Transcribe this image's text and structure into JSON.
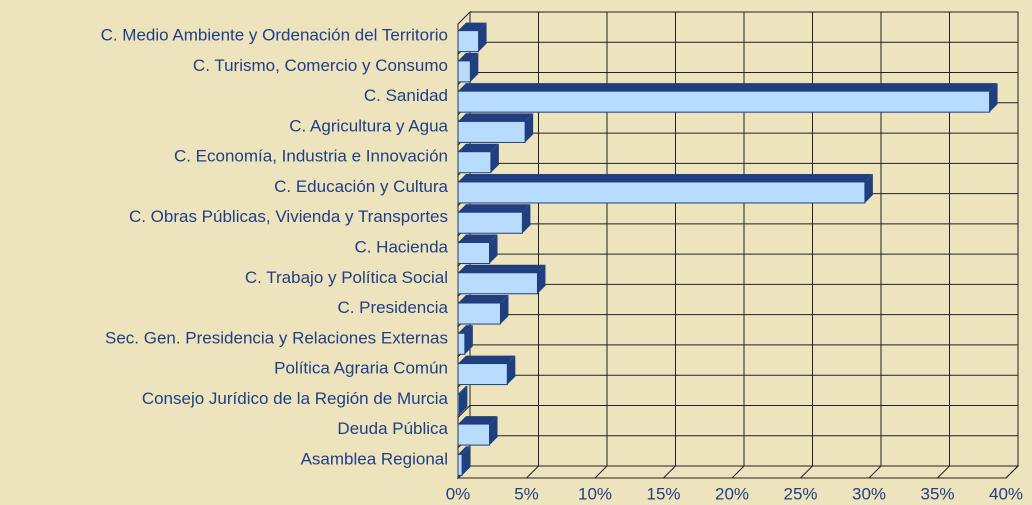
{
  "chart_data": {
    "type": "bar",
    "orientation": "horizontal",
    "categories": [
      "C. Medio Ambiente y Ordenación del Territorio",
      "C. Turismo, Comercio y Consumo",
      "C. Sanidad",
      "C. Agricultura y Agua",
      "C. Economía, Industria e Innovación",
      "C. Educación y Cultura",
      "C. Obras Públicas, Vivienda y Transportes",
      "C. Hacienda",
      "C. Trabajo y Política Social",
      "C. Presidencia",
      "Sec. Gen. Presidencia y Relaciones Externas",
      "Política Agraria Común",
      "Consejo Jurídico de la Región de Murcia",
      "Deuda Pública",
      "Asamblea Regional"
    ],
    "values": [
      1.5,
      0.9,
      38.8,
      4.9,
      2.4,
      29.7,
      4.7,
      2.3,
      5.8,
      3.1,
      0.5,
      3.6,
      0.1,
      2.3,
      0.3
    ],
    "color": "#b7dcff",
    "edge_color": "#1f3f7f",
    "xlim": [
      0,
      40
    ],
    "xticks": [
      {
        "value": 0,
        "label": "0%"
      },
      {
        "value": 5,
        "label": "5%"
      },
      {
        "value": 10,
        "label": "10%"
      },
      {
        "value": 15,
        "label": "15%"
      },
      {
        "value": 20,
        "label": "20%"
      },
      {
        "value": 25,
        "label": "25%"
      },
      {
        "value": 30,
        "label": "30%"
      },
      {
        "value": 35,
        "label": "35%"
      },
      {
        "value": 40,
        "label": "40%"
      }
    ],
    "grid": true
  }
}
